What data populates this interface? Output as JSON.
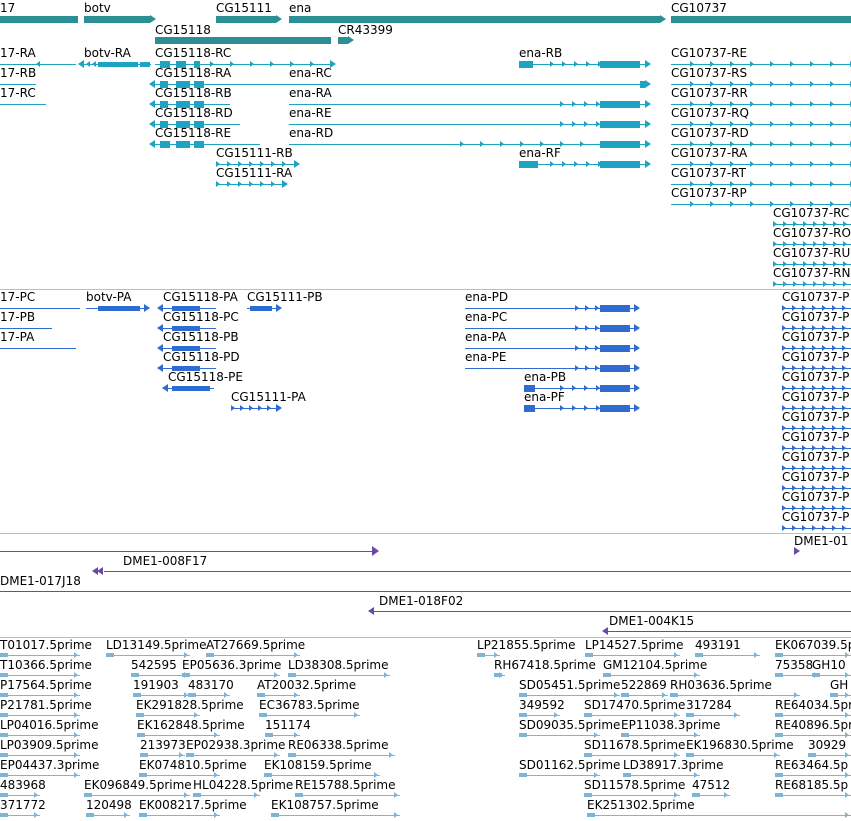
{
  "colors": {
    "gene": "#2b8f93",
    "transcript": "#1ea4c3",
    "protein": "#2f6bd1",
    "clone": "#6a4aa8",
    "est": "#7eb4d8",
    "separator": "#bdbdbd"
  },
  "tracks": {
    "genes": {
      "labels": [
        "17",
        "botv",
        "CG15111",
        "ena",
        "CG10737",
        "CG15118",
        "CR43399"
      ]
    },
    "transcripts": {
      "labels": [
        "17-RA",
        "17-RB",
        "17-RC",
        "botv-RA",
        "CG15118-RC",
        "CG15118-RA",
        "CG15118-RB",
        "CG15118-RD",
        "CG15118-RE",
        "CG15111-RB",
        "CG15111-RA",
        "ena-RC",
        "ena-RA",
        "ena-RE",
        "ena-RD",
        "ena-RB",
        "ena-RF",
        "CG10737-RE",
        "CG10737-RS",
        "CG10737-RR",
        "CG10737-RQ",
        "CG10737-RD",
        "CG10737-RA",
        "CG10737-RT",
        "CG10737-RP",
        "CG10737-RC",
        "CG10737-RO",
        "CG10737-RU",
        "CG10737-RN"
      ]
    },
    "proteins": {
      "labels": [
        "17-PC",
        "17-PB",
        "17-PA",
        "botv-PA",
        "CG15118-PA",
        "CG15111-PB",
        "CG15118-PC",
        "CG15118-PB",
        "CG15118-PD",
        "CG15118-PE",
        "CG15111-PA",
        "ena-PD",
        "ena-PC",
        "ena-PA",
        "ena-PE",
        "ena-PB",
        "ena-PF",
        "CG10737-P",
        "CG10737-P",
        "CG10737-P",
        "CG10737-P",
        "CG10737-P",
        "CG10737-P",
        "CG10737-P",
        "CG10737-P",
        "CG10737-P",
        "CG10737-P",
        "CG10737-P",
        "CG10737-P"
      ]
    },
    "clones": {
      "labels": [
        "DME1-01",
        "DME1-008F17",
        "DME1-017J18",
        "DME1-018F02",
        "DME1-004K15"
      ]
    },
    "ests": {
      "labels": [
        "T01017.5prime",
        "LD13149.5prime",
        "AT27669.5prime",
        "LP21855.5prime",
        "LP14527.5prime",
        "493191",
        "EK067039.5p",
        "T10366.5prime",
        "542595",
        "EP05636.3prime",
        "LD38308.5prime",
        "RH67418.5prime",
        "GM12104.5prime",
        "75358",
        "GH10",
        "P17564.5prime",
        "191903",
        "483170",
        "AT20032.5prime",
        "SD05451.5prime",
        "522869",
        "RH03636.5prime",
        "GH",
        "P21781.5prime",
        "EK291828.5prime",
        "EC36783.5prime",
        "349592",
        "SD17470.5prime",
        "317284",
        "RE64034.5prime",
        "LP04016.5prime",
        "EK162848.5prime",
        "151174",
        "SD09035.5prime",
        "EP11038.3prime",
        "RE40896.5prime",
        "LP03909.5prime",
        "213973",
        "EP02938.3prime",
        "RE06338.5prime",
        "SD11678.5prime",
        "EK196830.5prime",
        "30929",
        "EP04437.3prime",
        "EK074810.5prime",
        "EK108159.5prime",
        "SD01162.5prime",
        "LD38917.3prime",
        "RE63464.5p",
        "483968",
        "EK096849.5prime",
        "HL04228.5prime",
        "RE15788.5prime",
        "SD11578.5prime",
        "47512",
        "RE68185.5p",
        "371772",
        "120498",
        "EK008217.5prime",
        "EK108757.5prime",
        "EK251302.5prime"
      ]
    }
  }
}
